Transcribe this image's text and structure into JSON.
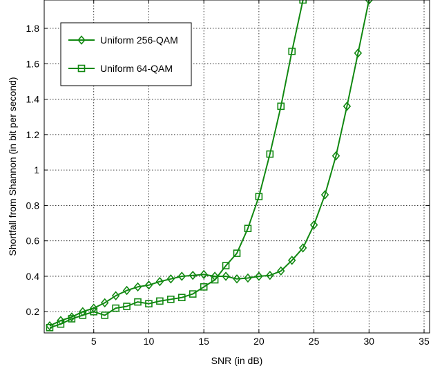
{
  "chart_data": {
    "type": "line",
    "title": "",
    "xlabel": "SNR (in dB)",
    "ylabel": "Shortfall from Shannon (in bit per second)",
    "xlim": [
      0.5,
      35.5
    ],
    "ylim": [
      0.08,
      1.96
    ],
    "xticks": [
      5,
      10,
      15,
      20,
      25,
      30,
      35
    ],
    "xtick_labels": [
      "5",
      "10",
      "15",
      "20",
      "25",
      "30",
      "35"
    ],
    "yticks": [
      0.2,
      0.4,
      0.6,
      0.8,
      1.0,
      1.2,
      1.4,
      1.6,
      1.8
    ],
    "ytick_labels": [
      "0.2",
      "0.4",
      "0.6",
      "0.8",
      "1",
      "1.2",
      "1.4",
      "1.6",
      "1.8"
    ],
    "grid": true,
    "legend_position": "top-left",
    "line_color": "#118811",
    "series": [
      {
        "name": "Uniform 256-QAM",
        "marker": "diamond",
        "x": [
          1,
          2,
          3,
          4,
          5,
          6,
          7,
          8,
          9,
          10,
          11,
          12,
          13,
          14,
          15,
          16,
          17,
          18,
          19,
          20,
          21,
          22,
          23,
          24,
          25,
          26,
          27,
          28,
          29,
          30
        ],
        "y": [
          0.12,
          0.15,
          0.17,
          0.2,
          0.22,
          0.25,
          0.29,
          0.32,
          0.34,
          0.35,
          0.37,
          0.385,
          0.4,
          0.405,
          0.41,
          0.4,
          0.4,
          0.385,
          0.39,
          0.4,
          0.405,
          0.43,
          0.49,
          0.56,
          0.69,
          0.86,
          1.08,
          1.36,
          1.66,
          1.96
        ]
      },
      {
        "name": "Uniform 64-QAM",
        "marker": "square",
        "x": [
          1,
          2,
          3,
          4,
          5,
          6,
          7,
          8,
          9,
          10,
          11,
          12,
          13,
          14,
          15,
          16,
          17,
          18,
          19,
          20,
          21,
          22,
          23,
          24
        ],
        "y": [
          0.11,
          0.13,
          0.16,
          0.18,
          0.2,
          0.18,
          0.22,
          0.23,
          0.255,
          0.245,
          0.26,
          0.27,
          0.28,
          0.3,
          0.34,
          0.38,
          0.46,
          0.53,
          0.67,
          0.85,
          1.09,
          1.36,
          1.67,
          1.96
        ]
      }
    ]
  }
}
